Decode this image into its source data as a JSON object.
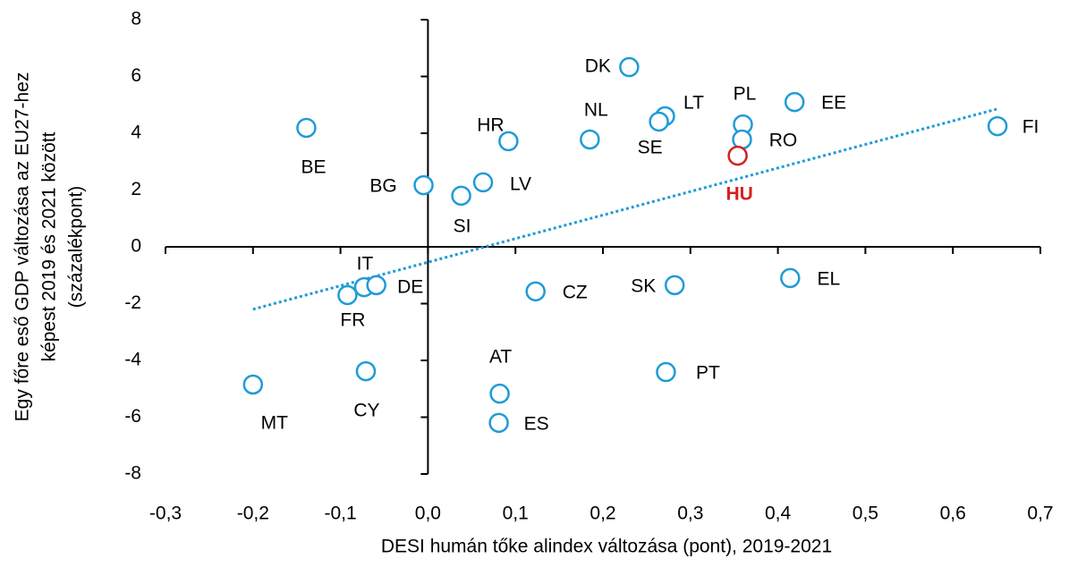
{
  "chart_data": {
    "type": "scatter",
    "xlabel": "DESI humán tőke alindex változása (pont), 2019-2021",
    "ylabel": [
      "Egy főre eső GDP változása az EU27-hez",
      "képest 2019 és 2021 között",
      "(százalékpont)"
    ],
    "labels": [
      "DK",
      "EE",
      "PL",
      "LT",
      "SE",
      "NL",
      "HR",
      "RO",
      "FI",
      "BE",
      "HU",
      "BG",
      "LV",
      "SI",
      "IT",
      "DE",
      "FR",
      "CZ",
      "SK",
      "EL",
      "CY",
      "PT",
      "AT",
      "ES",
      "MT"
    ],
    "x": [
      0.23,
      0.419,
      0.36,
      0.271,
      0.264,
      0.185,
      0.092,
      0.359,
      0.651,
      -0.139,
      0.354,
      -0.005,
      0.063,
      0.038,
      -0.073,
      -0.059,
      -0.092,
      0.123,
      0.282,
      0.414,
      -0.071,
      0.272,
      0.082,
      0.081,
      -0.2
    ],
    "y": [
      6.33,
      5.1,
      4.31,
      4.6,
      4.41,
      3.78,
      3.72,
      3.78,
      4.25,
      4.19,
      3.21,
      2.17,
      2.27,
      1.8,
      -1.42,
      -1.35,
      -1.7,
      -1.57,
      -1.35,
      -1.1,
      -4.38,
      -4.41,
      -5.17,
      -6.2,
      -4.85
    ],
    "colors": [
      "#1f9bd7",
      "#1f9bd7",
      "#1f9bd7",
      "#1f9bd7",
      "#1f9bd7",
      "#1f9bd7",
      "#1f9bd7",
      "#1f9bd7",
      "#1f9bd7",
      "#1f9bd7",
      "#d42020",
      "#1f9bd7",
      "#1f9bd7",
      "#1f9bd7",
      "#1f9bd7",
      "#1f9bd7",
      "#1f9bd7",
      "#1f9bd7",
      "#1f9bd7",
      "#1f9bd7",
      "#1f9bd7",
      "#1f9bd7",
      "#1f9bd7",
      "#1f9bd7",
      "#1f9bd7"
    ],
    "trendline": {
      "x": [
        -0.2,
        0.65
      ],
      "y": [
        -2.2,
        4.85
      ],
      "color": "#1f9bd7"
    },
    "xlim": [
      -0.3,
      0.7
    ],
    "xticks": [
      {
        "value": -0.3,
        "label": "-0,3"
      },
      {
        "value": -0.2,
        "label": "-0,2"
      },
      {
        "value": -0.1,
        "label": "-0,1"
      },
      {
        "value": 0,
        "label": "0,0"
      },
      {
        "value": 0.1,
        "label": "0,1"
      },
      {
        "value": 0.2,
        "label": "0,2"
      },
      {
        "value": 0.3,
        "label": "0,3"
      },
      {
        "value": 0.4,
        "label": "0,4"
      },
      {
        "value": 0.5,
        "label": "0,5"
      },
      {
        "value": 0.6,
        "label": "0,6"
      },
      {
        "value": 0.7,
        "label": "0,7"
      }
    ],
    "ylim": [
      -8,
      8
    ],
    "yticks": [
      -8,
      -6,
      -4,
      -2,
      0,
      2,
      4,
      6,
      8
    ]
  }
}
